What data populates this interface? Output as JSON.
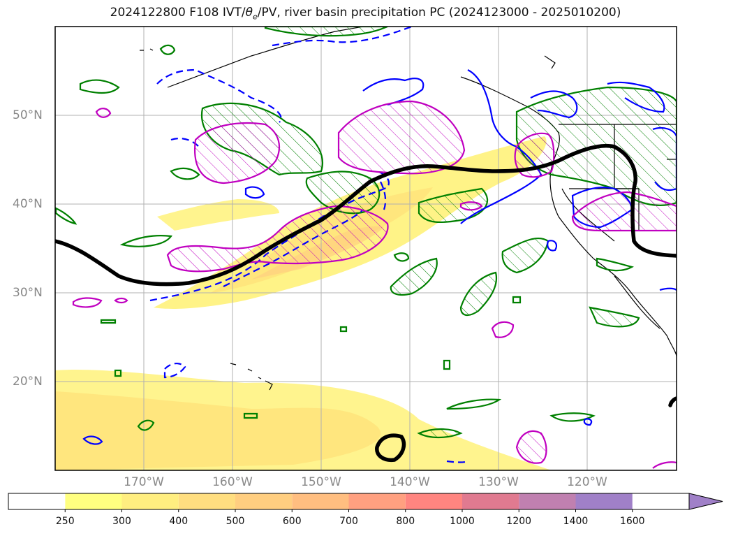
{
  "title": {
    "prefix": "2024122800 F108 IVT/",
    "theta": "θ",
    "theta_sub": "e",
    "suffix": "/PV, river basin precipitation PC (2024123000 - 2025010200)"
  },
  "lat_labels": [
    {
      "id": "lat-50",
      "text": "50°N"
    },
    {
      "id": "lat-40",
      "text": "40°N"
    },
    {
      "id": "lat-30",
      "text": "30°N"
    },
    {
      "id": "lat-20",
      "text": "20°N"
    }
  ],
  "lon_labels": [
    {
      "id": "lon-170",
      "text": "170°W"
    },
    {
      "id": "lon-160",
      "text": "160°W"
    },
    {
      "id": "lon-150",
      "text": "150°W"
    },
    {
      "id": "lon-140",
      "text": "140°W"
    },
    {
      "id": "lon-130",
      "text": "130°W"
    },
    {
      "id": "lon-120",
      "text": "120°W"
    }
  ],
  "colorbar": {
    "ticks": [
      "250",
      "300",
      "400",
      "500",
      "600",
      "700",
      "800",
      "1000",
      "1200",
      "1400",
      "1600"
    ],
    "colors": [
      "#ffffff",
      "#ffff80",
      "#ffee80",
      "#ffde80",
      "#ffce80",
      "#ffbe80",
      "#ffa080",
      "#ff8580",
      "#e07a90",
      "#c080b0",
      "#a080c8"
    ],
    "extend_color": "#a080c8"
  },
  "colors": {
    "ivt_light": "#fff27a",
    "ivt_mid": "#ffe27a",
    "ivt_orange": "#ffcf80",
    "green": "#008000",
    "blue": "#0000ff",
    "magenta": "#c000c0",
    "black_line": "#000000",
    "grid": "#b0b0b0"
  }
}
